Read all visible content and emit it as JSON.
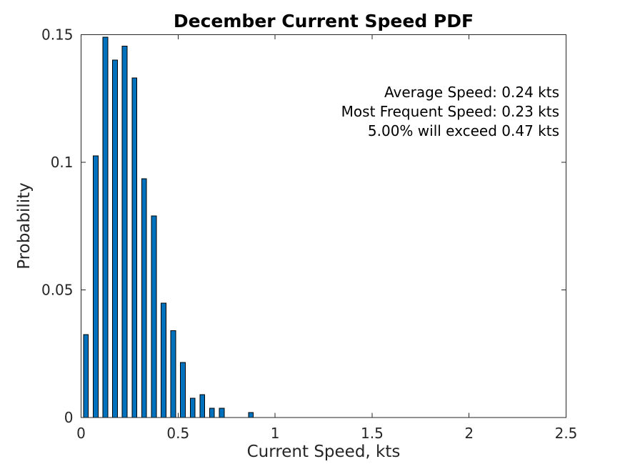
{
  "figure": {
    "background": "#FFFFFF"
  },
  "chart_data": {
    "type": "bar",
    "title": "December Current Speed PDF",
    "xlabel": "Current Speed, kts",
    "ylabel": "Probability",
    "bin_width": 0.05,
    "bar_width_fraction": 0.5,
    "x": [
      0.025,
      0.075,
      0.125,
      0.175,
      0.225,
      0.275,
      0.325,
      0.375,
      0.425,
      0.475,
      0.525,
      0.575,
      0.625,
      0.675,
      0.725,
      0.875
    ],
    "values": [
      0.0325,
      0.1025,
      0.149,
      0.14,
      0.1455,
      0.133,
      0.0935,
      0.079,
      0.0448,
      0.034,
      0.0215,
      0.0075,
      0.009,
      0.0037,
      0.0037,
      0.002
    ],
    "xlim": [
      0,
      2.5
    ],
    "ylim": [
      0,
      0.15
    ],
    "x_ticks": {
      "values": [
        0,
        0.5,
        1,
        1.5,
        2,
        2.5
      ],
      "labels": [
        "0",
        "0.5",
        "1",
        "1.5",
        "2",
        "2.5"
      ]
    },
    "y_ticks": {
      "values": [
        0,
        0.05,
        0.1,
        0.15
      ],
      "labels": [
        "0",
        "0.05",
        "0.1",
        "0.15"
      ]
    },
    "grid": false,
    "legend": "none",
    "tick_direction": "in",
    "box": true,
    "annotations": [
      "Average Speed: 0.24 kts",
      "Most Frequent Speed: 0.23 kts",
      "5.00% will exceed 0.47 kts"
    ],
    "colors": {
      "bar_fill": "#0072BD",
      "bar_edge": "#000000",
      "axis": "#262626",
      "tick_label": "#262626",
      "axis_label": "#262626",
      "title": "#000000",
      "annotation": "#000000"
    }
  }
}
